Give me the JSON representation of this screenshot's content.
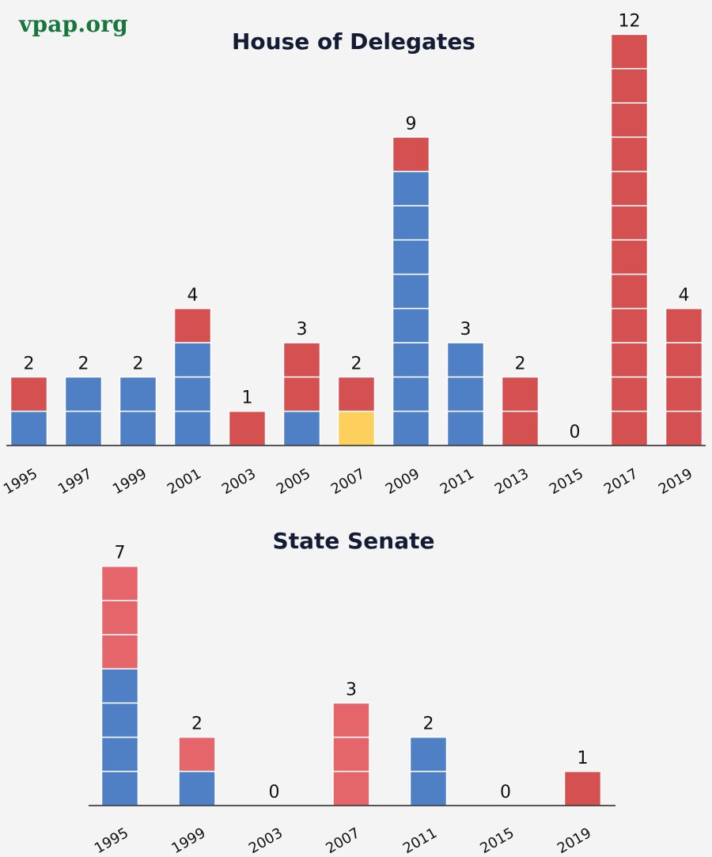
{
  "brand": {
    "logo_text": "vpap.org",
    "color": "#17773c"
  },
  "chart_data": [
    {
      "type": "bar",
      "stacked": true,
      "title": "House of Delegates",
      "xlabel": "",
      "ylabel": "",
      "grid": false,
      "categories": [
        "1995",
        "1997",
        "1999",
        "2001",
        "2003",
        "2005",
        "2007",
        "2009",
        "2011",
        "2013",
        "2015",
        "2017",
        "2019"
      ],
      "totals": [
        2,
        2,
        2,
        4,
        1,
        3,
        2,
        9,
        3,
        2,
        0,
        12,
        4
      ],
      "series": [
        {
          "name": "blue",
          "color": "#4f80c6",
          "values": [
            1,
            2,
            2,
            3,
            0,
            1,
            0,
            8,
            3,
            0,
            0,
            0,
            0
          ]
        },
        {
          "name": "yellow",
          "color": "#fdd05e",
          "values": [
            0,
            0,
            0,
            0,
            0,
            0,
            1,
            0,
            0,
            0,
            0,
            0,
            0
          ]
        },
        {
          "name": "red",
          "color": "#d55050",
          "values": [
            1,
            0,
            0,
            1,
            1,
            2,
            1,
            1,
            0,
            2,
            0,
            12,
            4
          ]
        }
      ],
      "ylim": [
        0,
        12
      ]
    },
    {
      "type": "bar",
      "stacked": true,
      "title": "State Senate",
      "xlabel": "",
      "ylabel": "",
      "grid": false,
      "categories": [
        "1995",
        "1999",
        "2003",
        "2007",
        "2011",
        "2015",
        "2019"
      ],
      "totals": [
        7,
        2,
        0,
        3,
        2,
        0,
        1
      ],
      "series": [
        {
          "name": "blue",
          "color": "#4f80c6",
          "values": [
            4,
            1,
            0,
            0,
            2,
            0,
            0
          ]
        },
        {
          "name": "red",
          "color": "#e5666a",
          "values": [
            3,
            1,
            0,
            3,
            0,
            0,
            0
          ]
        },
        {
          "name": "red-dark",
          "color": "#d55050",
          "values": [
            0,
            0,
            0,
            0,
            0,
            0,
            1
          ]
        }
      ],
      "ylim": [
        0,
        7
      ]
    }
  ]
}
